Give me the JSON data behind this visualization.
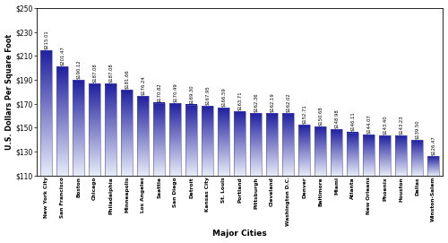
{
  "categories": [
    "New York City",
    "San Francisco",
    "Boston",
    "Chicago",
    "Philadelphia",
    "Minneapolis",
    "Los Angeles",
    "Seattle",
    "San Diego",
    "Detroit",
    "Kansas City",
    "St. Louis",
    "Portland",
    "Pittsburgh",
    "Cleveland",
    "Washington D.C.",
    "Denver",
    "Baltimore",
    "Miami",
    "Atlanta",
    "New Orleans",
    "Phoenix",
    "Houston",
    "Dallas",
    "Winston-Salem"
  ],
  "values": [
    215.01,
    201.47,
    190.12,
    187.08,
    187.08,
    181.66,
    176.24,
    170.82,
    170.49,
    169.3,
    167.95,
    166.59,
    163.71,
    162.36,
    162.19,
    162.02,
    152.71,
    150.68,
    148.98,
    146.11,
    144.07,
    143.4,
    143.23,
    139.5,
    126.47
  ],
  "ylabel": "U.S. Dollars Per Square Foot",
  "xlabel": "Major Cities",
  "ylim": [
    110,
    250
  ],
  "yticks": [
    110,
    130,
    150,
    170,
    190,
    210,
    230,
    250
  ],
  "bar_color_top": "#2020a0",
  "bar_color_bottom": "#e8ecf8",
  "bar_edge_color": "#5555bb",
  "background_color": "#ffffff",
  "bar_width": 0.7
}
